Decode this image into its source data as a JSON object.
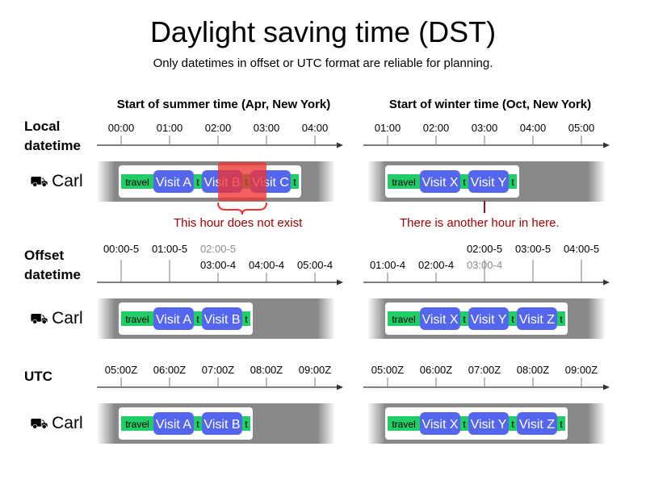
{
  "title": "Daylight saving time (DST)",
  "subtitle": "Only datetimes in offset or UTC format are reliable for planning.",
  "colors": {
    "travel": "#22cc66",
    "visit": "#5566ee",
    "visit_text": "#ffffff",
    "track": "#888888",
    "lane": "#ffffff",
    "axis": "#333333",
    "highlight": "#ee3333",
    "annotation": "#a40000",
    "dim_label": "#8c8c8c"
  },
  "panels": [
    {
      "title": "Start of summer time (Apr, New York)"
    },
    {
      "title": "Start of winter time (Oct, New York)"
    }
  ],
  "sections": [
    {
      "label_line1": "Local",
      "label_line2": "datetime"
    },
    {
      "label_line1": "Offset",
      "label_line2": "datetime"
    },
    {
      "label_line1": "UTC",
      "label_line2": ""
    }
  ],
  "resource": {
    "name": "Carl",
    "icon": "truck-icon",
    "icon_glyph": "⛟"
  },
  "segment_labels": {
    "travel": "travel",
    "short_travel": "t"
  },
  "ticks": {
    "local_summer": [
      {
        "label": "00:00"
      },
      {
        "label": "01:00"
      },
      {
        "label": "02:00"
      },
      {
        "label": "03:00"
      },
      {
        "label": "04:00"
      }
    ],
    "local_winter": [
      {
        "label": "01:00"
      },
      {
        "label": "02:00"
      },
      {
        "label": "03:00"
      },
      {
        "label": "04:00"
      },
      {
        "label": "05:00"
      }
    ],
    "offset_summer": [
      {
        "upper": "00:00-5",
        "lower": ""
      },
      {
        "upper": "01:00-5",
        "lower": ""
      },
      {
        "upper": "02:00-5",
        "upper_dim": true,
        "lower": "03:00-4"
      },
      {
        "upper": "",
        "lower": "04:00-4"
      },
      {
        "upper": "",
        "lower": "05:00-4"
      }
    ],
    "offset_winter": [
      {
        "upper": "",
        "lower": "01:00-4"
      },
      {
        "upper": "",
        "lower": "02:00-4"
      },
      {
        "upper": "02:00-5",
        "lower": "03:00-4",
        "lower_dim": true
      },
      {
        "upper": "03:00-5",
        "lower": ""
      },
      {
        "upper": "04:00-5",
        "lower": ""
      }
    ],
    "utc": [
      {
        "label": "05:00Z"
      },
      {
        "label": "06:00Z"
      },
      {
        "label": "07:00Z"
      },
      {
        "label": "08:00Z"
      },
      {
        "label": "09:00Z"
      }
    ]
  },
  "schedules": {
    "local_summer": [
      "travel",
      "Visit A",
      "t",
      "Visit B",
      "t",
      "Visit C",
      "t"
    ],
    "local_winter": [
      "travel",
      "Visit X",
      "t",
      "Visit Y",
      "t"
    ],
    "offset_summer": [
      "travel",
      "Visit A",
      "t",
      "Visit B",
      "t"
    ],
    "offset_winter": [
      "travel",
      "Visit X",
      "t",
      "Visit Y",
      "t",
      "Visit Z",
      "t"
    ],
    "utc_summer": [
      "travel",
      "Visit A",
      "t",
      "Visit B",
      "t"
    ],
    "utc_winter": [
      "travel",
      "Visit X",
      "t",
      "Visit Y",
      "t",
      "Visit Z",
      "t"
    ]
  },
  "annotations": {
    "missing_hour": "This hour does not exist",
    "extra_hour": "There is another hour in here."
  }
}
